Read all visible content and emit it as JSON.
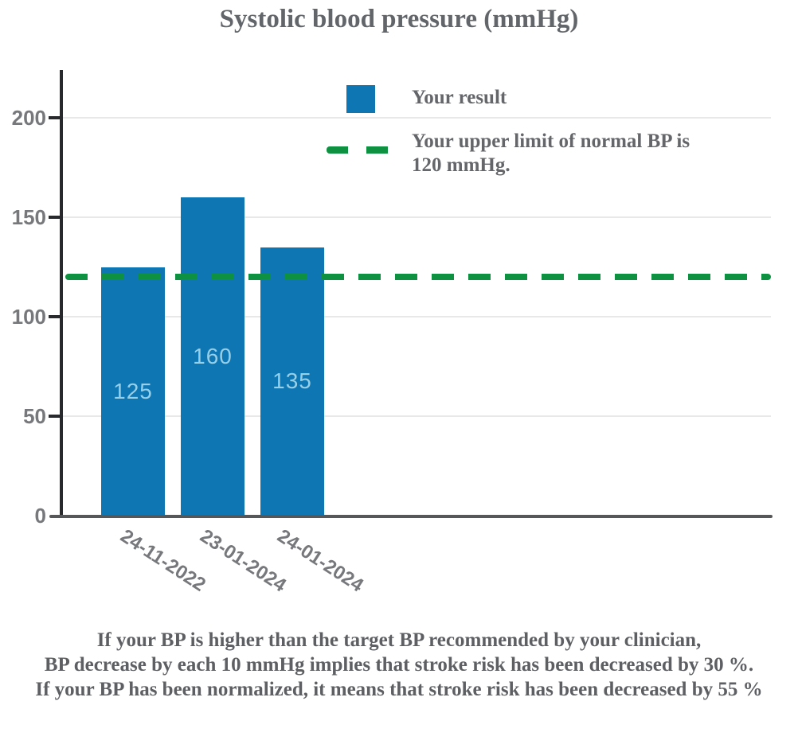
{
  "title": "Systolic blood pressure (mmHg)",
  "chart_data": {
    "type": "bar",
    "title": "Systolic blood pressure (mmHg)",
    "categories": [
      "24-11-2022",
      "23-01-2024",
      "24-01-2024"
    ],
    "values": [
      125,
      160,
      135
    ],
    "series_label": "Your result",
    "yticks": [
      200,
      150,
      100,
      50,
      0
    ],
    "ylim": [
      0,
      225
    ],
    "ylabel": "",
    "xlabel": "",
    "grid": "horizontal",
    "legend_position": "top-right",
    "reference_line": {
      "value": 120,
      "style": "dashed",
      "color": "#0e9140",
      "label": "Your upper limit of normal BP is 120 mmHg."
    }
  },
  "legend": {
    "result_label": "Your result",
    "limit_label": "Your upper limit of normal BP is 120 mmHg."
  },
  "footer": {
    "lines": [
      "If your BP is higher than the target BP recommended by your clinician,",
      "BP  decrease by each 10 mmHg implies that stroke risk has been decreased by 30 %.",
      "If your BP has been normalized, it means that stroke risk has been decreased by 55 %"
    ]
  },
  "colors": {
    "bar": "#0f76b4",
    "barlabel": "#96d0e8",
    "green": "#0e9140",
    "grid": "#e8e8e8",
    "spine": "#27292c",
    "axis": "#565759",
    "tick": "#77787b",
    "title": "#62666a",
    "text": "#5d5f63"
  }
}
